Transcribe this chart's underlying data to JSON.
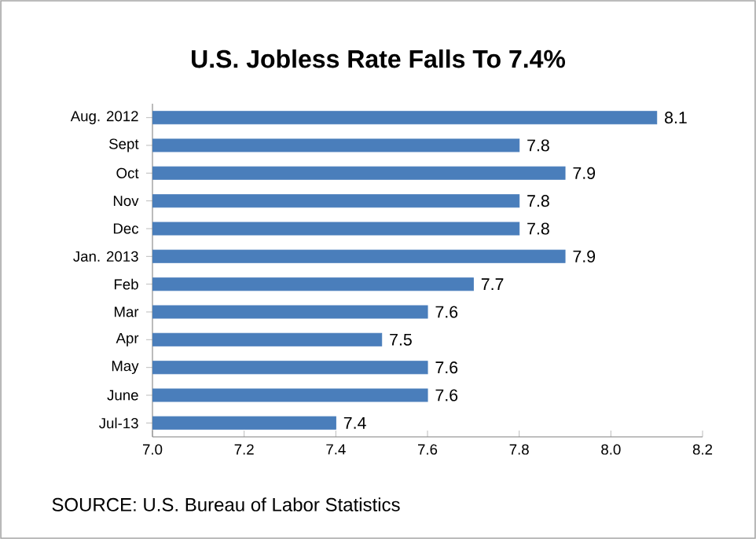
{
  "chart_data": {
    "type": "bar",
    "orientation": "horizontal",
    "title": "U.S. Jobless Rate Falls To 7.4%",
    "categories": [
      "Aug. 2012",
      "Sept",
      "Oct",
      "Nov",
      "Dec",
      "Jan. 2013",
      "Feb",
      "Mar",
      "Apr",
      "May",
      "June",
      "Jul-13"
    ],
    "values": [
      8.1,
      7.8,
      7.9,
      7.8,
      7.8,
      7.9,
      7.7,
      7.6,
      7.5,
      7.6,
      7.6,
      7.4
    ],
    "color": "#4a7ebb",
    "xlim": [
      7.0,
      8.2
    ],
    "xticks": [
      {
        "value": 7.0,
        "label": "7.0"
      },
      {
        "value": 7.2,
        "label": "7.2"
      },
      {
        "value": 7.4,
        "label": "7.4"
      },
      {
        "value": 7.6,
        "label": "7.6"
      },
      {
        "value": 7.8,
        "label": "7.8"
      },
      {
        "value": 8.0,
        "label": "8.0"
      },
      {
        "value": 8.2,
        "label": "8.2"
      }
    ],
    "data_labels": true,
    "annotations": [
      "SOURCE: U.S. Bureau of Labor Statistics"
    ]
  }
}
